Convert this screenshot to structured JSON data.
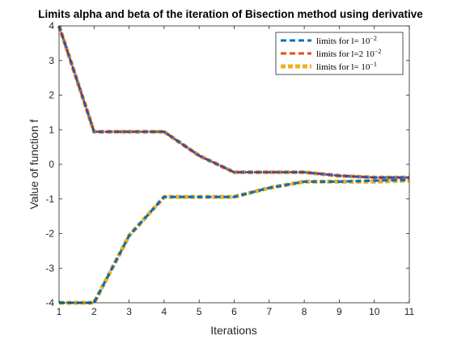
{
  "chart_data": {
    "type": "line",
    "title": "Limits alpha and beta of the iteration of Bisection method using derivative",
    "xlabel": "Iterations",
    "ylabel": "Value of function f",
    "xlim": [
      1,
      11
    ],
    "ylim": [
      -4,
      4
    ],
    "xticks": [
      1,
      2,
      3,
      4,
      5,
      6,
      7,
      8,
      9,
      10,
      11
    ],
    "yticks": [
      -4,
      -3,
      -2,
      -1,
      0,
      1,
      2,
      3,
      4
    ],
    "grid": false,
    "legend_position": "top-right",
    "x": [
      1,
      2,
      3,
      4,
      5,
      6,
      7,
      8,
      9,
      10,
      11
    ],
    "series": [
      {
        "name": "limits for l= 10^-2",
        "legend": {
          "pre": "limits for l= 10",
          "sup": "−2"
        },
        "color": "#0072BD",
        "upper": [
          4,
          0.94,
          0.94,
          0.94,
          0.25,
          -0.23,
          -0.23,
          -0.23,
          -0.33,
          -0.38,
          -0.38
        ],
        "lower": [
          -4,
          -4,
          -2.06,
          -0.94,
          -0.94,
          -0.94,
          -0.68,
          -0.5,
          -0.5,
          -0.47,
          -0.45
        ]
      },
      {
        "name": "limits for l=2 10^-2",
        "legend": {
          "pre": "limits for l=2 10",
          "sup": "−2"
        },
        "color": "#D95319",
        "upper": [
          4,
          0.94,
          0.94,
          0.94,
          0.25,
          -0.23,
          -0.23,
          -0.23,
          -0.33,
          -0.38,
          -0.38
        ],
        "lower": [
          -4,
          -4,
          -2.06,
          -0.94,
          -0.94,
          -0.94,
          -0.68,
          -0.5,
          -0.5,
          -0.47,
          -0.45
        ]
      },
      {
        "name": "limits for l= 10^-1",
        "legend": {
          "pre": "limits for l= 10",
          "sup": "−1"
        },
        "color": "#EDB120",
        "upper": [
          4,
          0.94,
          0.94,
          0.94,
          0.25,
          -0.23,
          -0.23,
          -0.23,
          -0.33,
          -0.38,
          -0.38
        ],
        "lower": [
          -4,
          -4,
          -2.06,
          -0.94,
          -0.94,
          -0.94,
          -0.68,
          -0.5,
          -0.5,
          -0.5,
          -0.47
        ]
      }
    ],
    "overlay_color": "#7E2F8E"
  }
}
